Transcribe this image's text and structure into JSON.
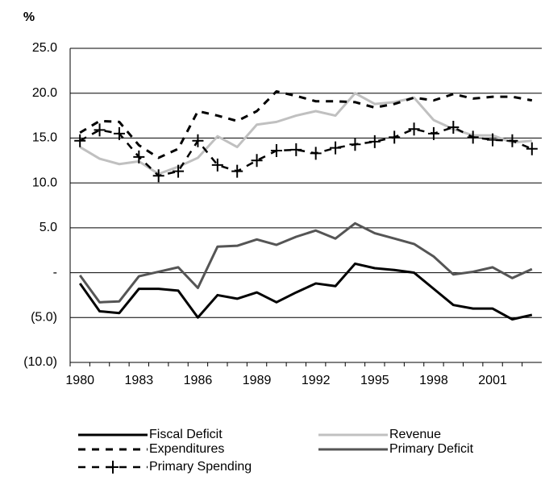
{
  "chart_data": {
    "type": "line",
    "y_label": "%",
    "categories": [
      "1980",
      null,
      null,
      "1983",
      null,
      null,
      "1986",
      null,
      null,
      "1989",
      null,
      null,
      "1992",
      null,
      null,
      "1995",
      null,
      null,
      "1998",
      null,
      null,
      "2001",
      null,
      null
    ],
    "ylim": [
      -10,
      25
    ],
    "yticks": [
      {
        "value": -10,
        "label": "(10.0)"
      },
      {
        "value": -5,
        "label": "(5.0)"
      },
      {
        "value": 0,
        "label": "-"
      },
      {
        "value": 5,
        "label": "5.0"
      },
      {
        "value": 10,
        "label": "10.0"
      },
      {
        "value": 15,
        "label": "15.0"
      },
      {
        "value": 20,
        "label": "20.0"
      },
      {
        "value": 25,
        "label": "25.0"
      }
    ],
    "grid": true,
    "legend": "bottom",
    "series": [
      {
        "name": "Fiscal Deficit",
        "color": "#000000",
        "style": "solid",
        "values": [
          -1.2,
          -4.3,
          -4.5,
          -1.8,
          -1.8,
          -2.0,
          -5.0,
          -2.5,
          -2.9,
          -2.2,
          -3.3,
          -2.2,
          -1.2,
          -1.5,
          1.0,
          0.5,
          0.3,
          0.0,
          -1.8,
          -3.6,
          -4.0,
          -4.0,
          -5.2,
          -4.7
        ]
      },
      {
        "name": "Revenue",
        "color": "#c0c0c0",
        "style": "solid",
        "values": [
          14.0,
          12.7,
          12.1,
          12.4,
          11.0,
          11.8,
          12.8,
          15.2,
          14.0,
          16.5,
          16.8,
          17.5,
          18.0,
          17.5,
          20.0,
          18.8,
          19.0,
          19.5,
          17.0,
          16.0,
          15.3,
          15.3,
          14.5,
          14.7
        ]
      },
      {
        "name": "Expenditures",
        "color": "#000000",
        "style": "dashed",
        "values": [
          15.6,
          16.9,
          16.8,
          14.2,
          12.8,
          13.8,
          18.0,
          17.5,
          16.9,
          18.0,
          20.2,
          19.7,
          19.1,
          19.1,
          19.0,
          18.4,
          18.8,
          19.5,
          19.2,
          19.9,
          19.4,
          19.6,
          19.6,
          19.2
        ]
      },
      {
        "name": "Primary Deficit",
        "color": "#555555",
        "style": "solid",
        "values": [
          -0.3,
          -3.3,
          -3.2,
          -0.4,
          0.1,
          0.6,
          -1.7,
          2.9,
          3.0,
          3.7,
          3.1,
          4.0,
          4.7,
          3.8,
          5.5,
          4.4,
          3.8,
          3.2,
          1.8,
          -0.2,
          0.1,
          0.6,
          -0.6,
          0.4
        ]
      },
      {
        "name": "Primary Spending",
        "color": "#000000",
        "style": "dashed-plus",
        "values": [
          14.7,
          15.9,
          15.5,
          12.9,
          10.8,
          11.3,
          14.7,
          12.0,
          11.3,
          12.5,
          13.6,
          13.7,
          13.3,
          13.9,
          14.3,
          14.6,
          15.1,
          16.0,
          15.5,
          16.2,
          15.1,
          14.8,
          14.7,
          13.8
        ]
      }
    ]
  }
}
